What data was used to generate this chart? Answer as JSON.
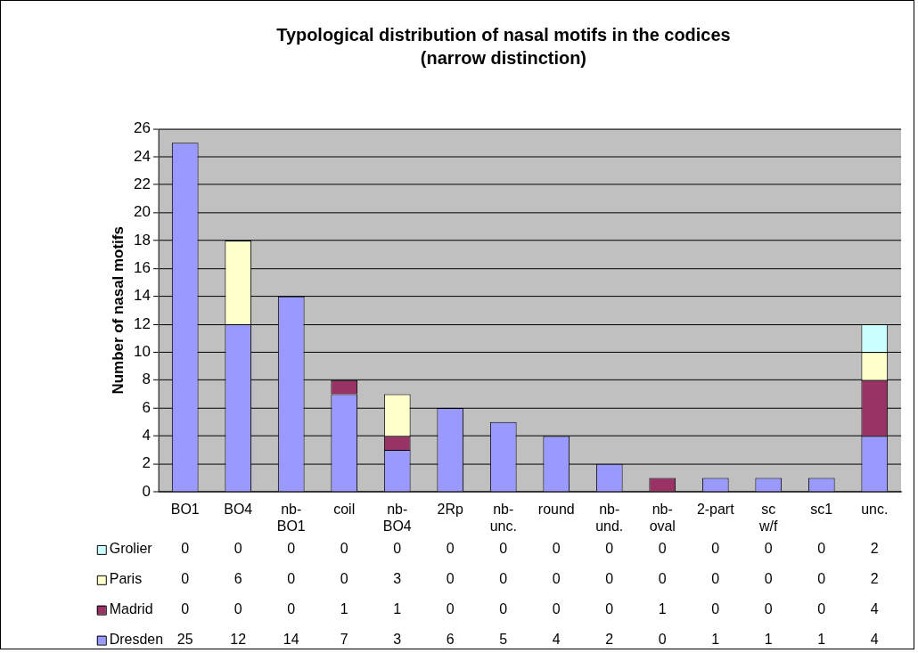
{
  "chart_data": {
    "type": "bar",
    "title": "Typological distribution of nasal motifs in the codices",
    "subtitle": "(narrow distinction)",
    "ylabel": "Number of nasal motifs",
    "categories": [
      "BO1",
      "BO4",
      "nb-BO1",
      "coil",
      "nb-BO4",
      "2Rp",
      "nb-unc.",
      "round",
      "nb-und.",
      "nb-oval",
      "2-part",
      "sc w/f",
      "sc1",
      "unc."
    ],
    "stacked": true,
    "ylim": [
      0,
      26
    ],
    "yticks": [
      0,
      2,
      4,
      6,
      8,
      10,
      12,
      14,
      16,
      18,
      20,
      22,
      24,
      26
    ],
    "grid": "y",
    "legend": "bottom",
    "data_labels": true,
    "series": [
      {
        "name": "Dresden",
        "color": "#9999ff",
        "values": [
          25,
          12,
          14,
          7,
          3,
          6,
          5,
          4,
          2,
          0,
          1,
          1,
          1,
          4
        ]
      },
      {
        "name": "Madrid",
        "color": "#993366",
        "values": [
          0,
          0,
          0,
          1,
          1,
          0,
          0,
          0,
          0,
          1,
          0,
          0,
          0,
          4
        ]
      },
      {
        "name": "Paris",
        "color": "#ffffcc",
        "values": [
          0,
          6,
          0,
          0,
          3,
          0,
          0,
          0,
          0,
          0,
          0,
          0,
          0,
          2
        ]
      },
      {
        "name": "Grolier",
        "color": "#ccffff",
        "values": [
          0,
          0,
          0,
          0,
          0,
          0,
          0,
          0,
          0,
          0,
          0,
          0,
          0,
          2
        ]
      }
    ]
  }
}
